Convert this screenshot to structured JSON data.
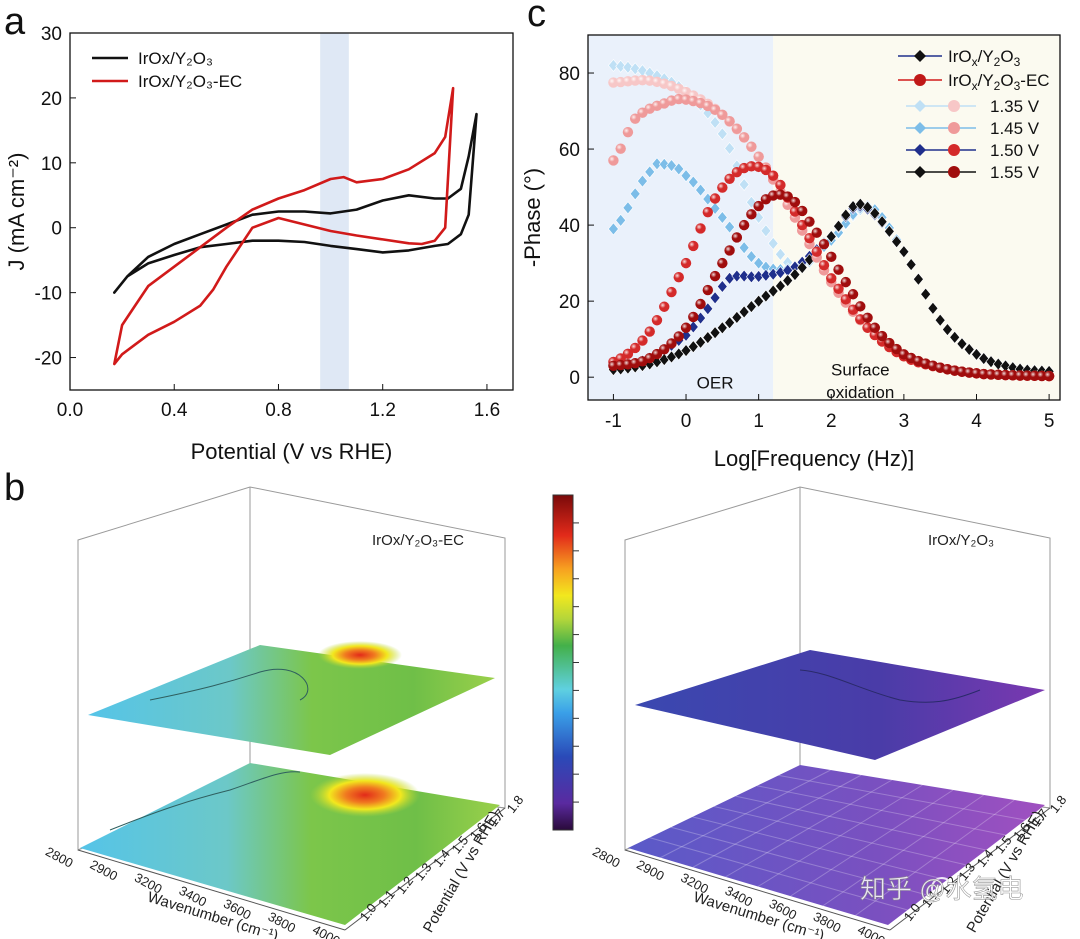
{
  "panels": {
    "a": "a",
    "b": "b",
    "c": "c"
  },
  "colors": {
    "black_series": "#111111",
    "red_series": "#d11a1a",
    "highlight_band": "#dfe8f5",
    "light_blue_1": "#bfe0f5",
    "light_blue_2": "#7cbde8",
    "dark_blue": "#1f2f8c",
    "pink_1": "#f7c7c7",
    "pink_2": "#ef9a9a",
    "red_3": "#d42a2a",
    "dark_red_4": "#a00d0d"
  },
  "chart_data": [
    {
      "id": "a",
      "type": "line",
      "xlabel": "Potential (V vs RHE)",
      "ylabel": "J (mA cm⁻²)",
      "xlim": [
        0.0,
        1.7
      ],
      "ylim": [
        -25,
        30
      ],
      "x_ticks": [
        "0.0",
        "0.4",
        "0.8",
        "1.2",
        "1.6"
      ],
      "y_ticks": [
        "-20",
        "-10",
        "0",
        "10",
        "20",
        "30"
      ],
      "highlight_band_x": [
        0.96,
        1.07
      ],
      "legend_position": "top-left",
      "series": [
        {
          "name": "IrOx/Y2O3",
          "legend_label": "IrOx/Y₂O₃",
          "color": "#111111",
          "x": [
            0.17,
            0.22,
            0.3,
            0.4,
            0.5,
            0.6,
            0.7,
            0.8,
            0.9,
            1.0,
            1.1,
            1.2,
            1.3,
            1.4,
            1.45,
            1.5,
            1.53,
            1.56,
            1.53,
            1.5,
            1.45,
            1.4,
            1.3,
            1.2,
            1.1,
            1.0,
            0.9,
            0.8,
            0.7,
            0.6,
            0.5,
            0.4,
            0.3,
            0.22,
            0.17
          ],
          "y": [
            -10,
            -7.5,
            -4.5,
            -2.5,
            -1,
            0.5,
            2,
            2.5,
            2.5,
            2.2,
            2.8,
            4.2,
            5,
            4.5,
            4.5,
            6,
            11,
            17.5,
            2,
            -1,
            -2.5,
            -2.8,
            -3.5,
            -3.8,
            -3.3,
            -2.8,
            -2.2,
            -2,
            -2,
            -2.5,
            -3,
            -4.2,
            -5.5,
            -7.5,
            -10
          ]
        },
        {
          "name": "IrOx/Y2O3-EC",
          "legend_label": "IrOx/Y₂O₃-EC",
          "color": "#d11a1a",
          "x": [
            0.17,
            0.2,
            0.25,
            0.3,
            0.4,
            0.5,
            0.6,
            0.7,
            0.8,
            0.9,
            1.0,
            1.05,
            1.1,
            1.2,
            1.3,
            1.4,
            1.44,
            1.47,
            1.44,
            1.4,
            1.35,
            1.3,
            1.2,
            1.1,
            1.0,
            0.9,
            0.8,
            0.7,
            0.6,
            0.55,
            0.5,
            0.4,
            0.3,
            0.25,
            0.2,
            0.17
          ],
          "y": [
            -21,
            -15,
            -12,
            -9,
            -6,
            -3,
            0,
            2.8,
            4.5,
            5.8,
            7.5,
            7.8,
            7,
            7.5,
            9,
            11.5,
            14,
            21.5,
            0,
            -2,
            -2.5,
            -2.4,
            -1.8,
            -1.2,
            -0.5,
            0.5,
            1.5,
            0,
            -6,
            -9.5,
            -12,
            -14.5,
            -16.5,
            -18,
            -19.5,
            -21
          ]
        }
      ]
    },
    {
      "id": "c",
      "type": "scatter",
      "xlabel": "Log[Frequency (Hz)]",
      "ylabel": "-Phase (°)",
      "xlim": [
        -1.35,
        5.15
      ],
      "ylim": [
        -6,
        90
      ],
      "x_ticks": [
        "-1",
        "0",
        "1",
        "2",
        "3",
        "4",
        "5"
      ],
      "y_ticks": [
        "0",
        "20",
        "40",
        "60",
        "80"
      ],
      "regions": [
        {
          "label": "OER",
          "x_range": [
            -1.35,
            1.2
          ],
          "color": "#eaf1fb"
        },
        {
          "label": "Surface oxidation",
          "label_lines": [
            "Surface",
            "oxidation"
          ],
          "x_range": [
            1.2,
            5.15
          ],
          "color": "#fbfaf0"
        }
      ],
      "legend_position": "top-right",
      "legend": {
        "materials": [
          {
            "label": "IrOx/Y2O3",
            "label_parts": [
              "IrO",
              "x",
              "/Y",
              "2",
              "O",
              "3"
            ],
            "marker": "diamond"
          },
          {
            "label": "IrOx/Y2O3-EC",
            "label_parts": [
              "IrO",
              "x",
              "/Y",
              "2",
              "O",
              "3",
              "-EC"
            ],
            "marker": "sphere"
          }
        ],
        "potentials": [
          "1.35 V",
          "1.45 V",
          "1.50 V",
          "1.55 V"
        ]
      },
      "series": [
        {
          "material": "IrOx/Y2O3",
          "potential": "1.35 V",
          "marker": "diamond",
          "color": "#bfe0f5",
          "x": [
            -1,
            -0.5,
            0,
            0.5,
            1,
            1.5,
            2,
            2.5,
            3,
            3.5,
            4,
            4.5,
            5
          ],
          "y": [
            82,
            80,
            75,
            64,
            42,
            29,
            36,
            44.5,
            33,
            15,
            6,
            2.5,
            1.5
          ]
        },
        {
          "material": "IrOx/Y2O3",
          "potential": "1.45 V",
          "marker": "diamond",
          "color": "#7cbde8",
          "x": [
            -1,
            -0.5,
            -0.3,
            0,
            0.5,
            1,
            1.5,
            2,
            2.5,
            3,
            3.5,
            4,
            4.5,
            5
          ],
          "y": [
            39,
            54,
            56,
            53,
            42,
            30,
            29,
            36,
            45,
            33,
            15,
            6,
            2.5,
            1.5
          ]
        },
        {
          "material": "IrOx/Y2O3",
          "potential": "1.50 V",
          "marker": "diamond",
          "color": "#1f2f8c",
          "x": [
            -1,
            -0.5,
            0,
            0.3,
            0.6,
            1,
            1.5,
            2,
            2.4,
            3,
            3.5,
            4,
            4.5,
            5
          ],
          "y": [
            2.5,
            5,
            11,
            18,
            26,
            26.5,
            29,
            37,
            45,
            33,
            15,
            6,
            2.5,
            1.5
          ]
        },
        {
          "material": "IrOx/Y2O3",
          "potential": "1.55 V",
          "marker": "diamond",
          "color": "#111111",
          "x": [
            -1,
            -0.5,
            0,
            0.5,
            1,
            1.5,
            2,
            2.4,
            3,
            3.5,
            4,
            4.5,
            5
          ],
          "y": [
            2,
            3.5,
            7,
            13,
            20,
            27,
            37,
            45.5,
            33,
            15,
            6,
            2.5,
            1.5
          ]
        },
        {
          "material": "IrOx/Y2O3-EC",
          "potential": "1.35 V",
          "marker": "sphere",
          "color": "#f7c7c7",
          "x": [
            -1,
            -0.5,
            0,
            0.5,
            1,
            1.5,
            2,
            2.5,
            3,
            3.5,
            4,
            4.5,
            5
          ],
          "y": [
            77.5,
            78,
            75,
            69,
            58,
            42,
            25,
            13,
            5.5,
            2.5,
            1,
            0.5,
            0.3
          ]
        },
        {
          "material": "IrOx/Y2O3-EC",
          "potential": "1.45 V",
          "marker": "sphere",
          "color": "#ef9a9a",
          "x": [
            -1,
            -0.7,
            -0.3,
            0,
            0.5,
            1,
            1.5,
            2,
            2.5,
            3,
            3.5,
            4,
            4.5,
            5
          ],
          "y": [
            57,
            68,
            72,
            73,
            69,
            58,
            42,
            25,
            13,
            5.5,
            2.5,
            1,
            0.5,
            0.3
          ]
        },
        {
          "material": "IrOx/Y2O3-EC",
          "potential": "1.50 V",
          "marker": "sphere",
          "color": "#d42a2a",
          "x": [
            -1,
            -0.5,
            0,
            0.4,
            0.8,
            1.2,
            1.6,
            2,
            2.5,
            3,
            3.5,
            4,
            4.5,
            5
          ],
          "y": [
            4,
            12,
            30,
            47,
            55,
            53,
            40,
            26,
            13,
            5.5,
            2.5,
            1,
            0.5,
            0.3
          ]
        },
        {
          "material": "IrOx/Y2O3-EC",
          "potential": "1.55 V",
          "marker": "sphere",
          "color": "#a00d0d",
          "x": [
            -1,
            -0.5,
            0,
            0.5,
            1,
            1.4,
            1.8,
            2.2,
            2.6,
            3,
            3.5,
            4,
            4.5,
            5
          ],
          "y": [
            3,
            5,
            13,
            30,
            45,
            47.5,
            38,
            25,
            13,
            6,
            2.5,
            1,
            0.5,
            0.3
          ]
        }
      ]
    },
    {
      "id": "b-left",
      "type": "heatmap",
      "surface_title": "IrOx/Y₂O₃-EC",
      "xlabel": "Wavenumber (cm⁻¹)",
      "ylabel": "Potential (V vs RHE)",
      "x_ticks": [
        "2800",
        "2900",
        "3200",
        "3400",
        "3600",
        "3800",
        "4000"
      ],
      "y_ticks": [
        "1.0",
        "1.1",
        "1.2",
        "1.3",
        "1.4",
        "1.5",
        "1.6",
        "1.7",
        "1.8"
      ],
      "colormap": "rainbow"
    },
    {
      "id": "b-right",
      "type": "heatmap",
      "surface_title": "IrOx/Y₂O₃",
      "xlabel": "Wavenumber (cm⁻¹)",
      "ylabel": "Potential (V vs RHE)",
      "x_ticks": [
        "2800",
        "2900",
        "3200",
        "3400",
        "3600",
        "3800",
        "4000"
      ],
      "y_ticks": [
        "1.0",
        "1.1",
        "1.2",
        "1.3",
        "1.4",
        "1.5",
        "1.6",
        "1.7",
        "1.8"
      ],
      "colormap": "rainbow"
    }
  ],
  "watermark": "知乎 @水氢电"
}
